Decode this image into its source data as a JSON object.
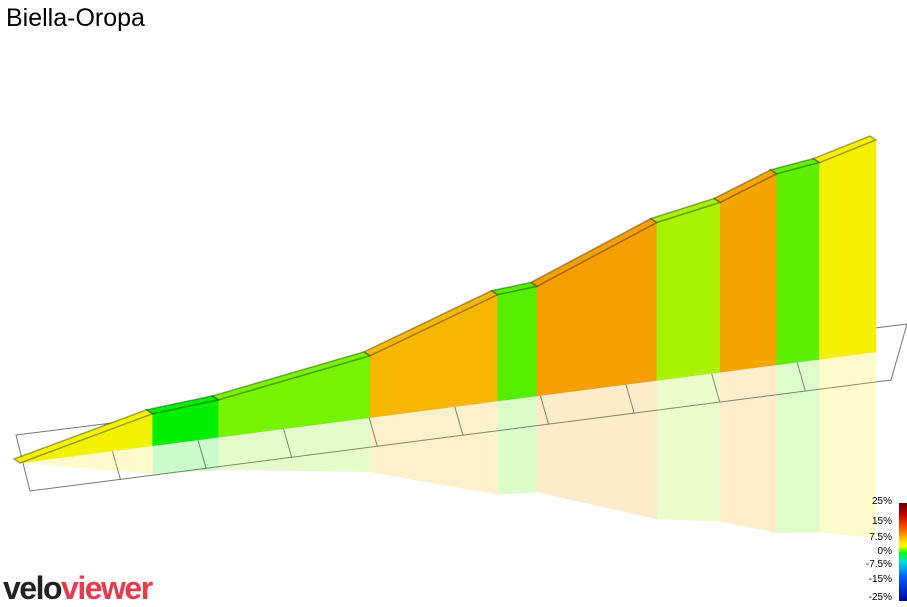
{
  "title": "Biella-Oropa",
  "brand": {
    "part1": "velo",
    "part2": "viewer"
  },
  "legend": {
    "labels": [
      "25%",
      "15%",
      "7.5%",
      "0%",
      "-7.5%",
      "-15%",
      "-25%"
    ]
  },
  "chart_data": {
    "type": "area",
    "title": "Biella-Oropa",
    "description_of_encoding": "3D gradient profile; each segment colored by gradient",
    "segments": [
      {
        "gradient": 4.5,
        "color": "#f2f200"
      },
      {
        "gradient": 1.5,
        "color": "#00ee00"
      },
      {
        "gradient": 3.0,
        "color": "#77f200"
      },
      {
        "gradient": 6.5,
        "color": "#f7b600"
      },
      {
        "gradient": 1.5,
        "color": "#55ee00"
      },
      {
        "gradient": 7.5,
        "color": "#f59e00"
      },
      {
        "gradient": 3.5,
        "color": "#a6f200"
      },
      {
        "gradient": 7.0,
        "color": "#f5a500"
      },
      {
        "gradient": 2.5,
        "color": "#5fef00"
      },
      {
        "gradient": 5.0,
        "color": "#f5f000"
      }
    ],
    "colorscale_range": [
      -25,
      25
    ]
  }
}
